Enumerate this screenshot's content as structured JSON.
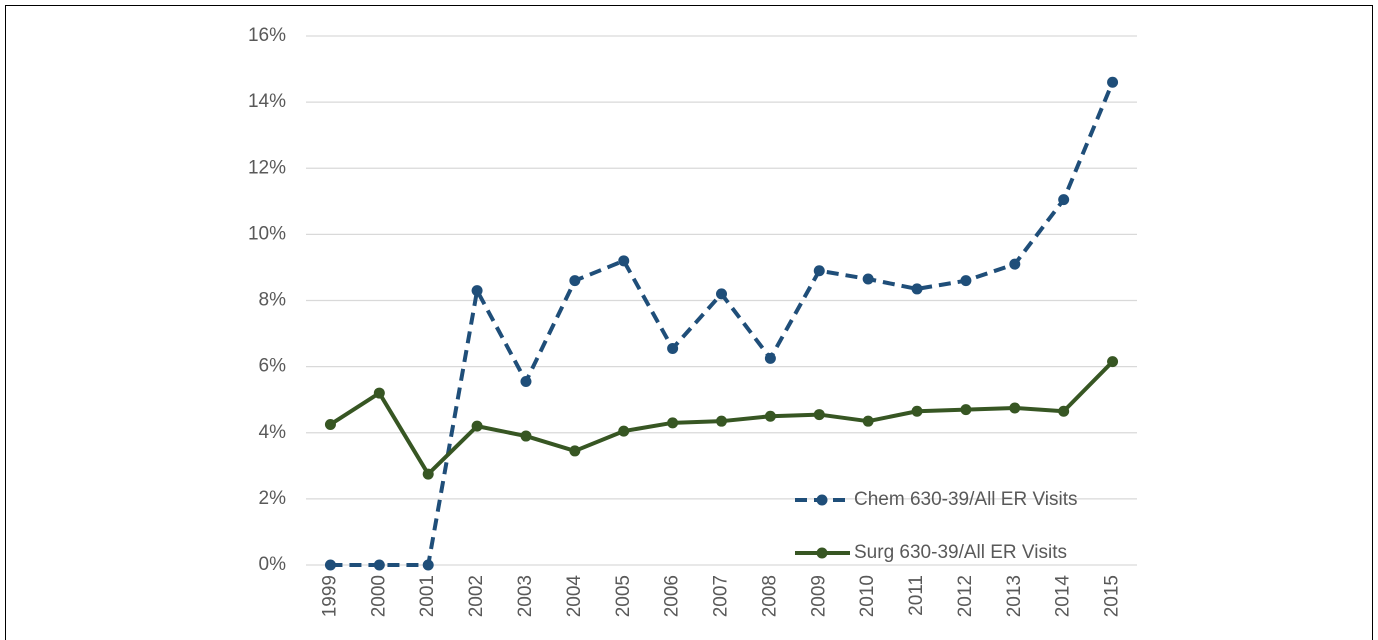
{
  "chart_data": {
    "type": "line",
    "categories": [
      "1999",
      "2000",
      "2001",
      "2002",
      "2003",
      "2004",
      "2005",
      "2006",
      "2007",
      "2008",
      "2009",
      "2010",
      "2011",
      "2012",
      "2013",
      "2014",
      "2015"
    ],
    "series": [
      {
        "name": "Chem 630-39/All ER Visits",
        "color": "#1f4e79",
        "dash": true,
        "values": [
          0,
          0,
          0,
          8.3,
          5.55,
          8.6,
          9.2,
          6.55,
          8.2,
          6.25,
          8.9,
          8.65,
          8.35,
          8.6,
          9.1,
          11.05,
          14.6
        ]
      },
      {
        "name": "Surg 630-39/All ER Visits",
        "color": "#375623",
        "dash": false,
        "values": [
          4.25,
          5.2,
          2.75,
          4.2,
          3.9,
          3.45,
          4.05,
          4.3,
          4.35,
          4.5,
          4.55,
          4.35,
          4.65,
          4.7,
          4.75,
          4.65,
          6.15
        ]
      }
    ],
    "ylim": [
      0,
      16
    ],
    "yticks": [
      {
        "value": 0,
        "label": "0%"
      },
      {
        "value": 2,
        "label": "2%"
      },
      {
        "value": 4,
        "label": "4%"
      },
      {
        "value": 6,
        "label": "6%"
      },
      {
        "value": 8,
        "label": "8%"
      },
      {
        "value": 10,
        "label": "10%"
      },
      {
        "value": 12,
        "label": "12%"
      },
      {
        "value": 14,
        "label": "14%"
      },
      {
        "value": 16,
        "label": "16%"
      }
    ],
    "grid": true,
    "legend": "lower right"
  }
}
